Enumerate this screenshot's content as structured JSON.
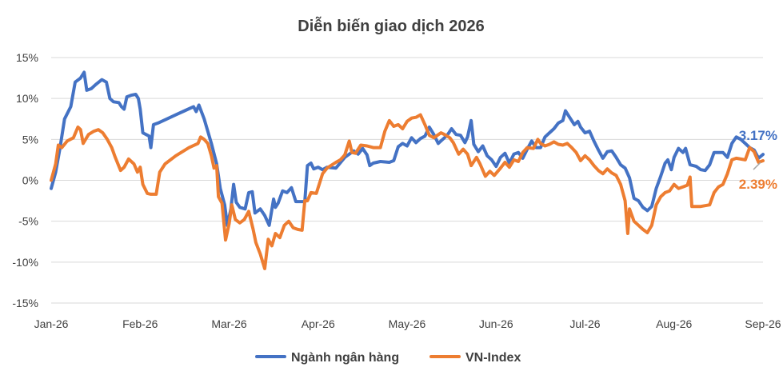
{
  "chart_data": {
    "type": "line",
    "title": "Diễn biến giao dịch 2026",
    "xlabel": "",
    "ylabel": "",
    "x_ticks": [
      "Jan-26",
      "Feb-26",
      "Mar-26",
      "Apr-26",
      "May-26",
      "Jun-26",
      "Jul-26",
      "Aug-26",
      "Sep-26"
    ],
    "y_ticks": [
      "15%",
      "10%",
      "5%",
      "0%",
      "-5%",
      "-10%",
      "-15%"
    ],
    "ylim": [
      -15,
      15
    ],
    "xlim": [
      0,
      8
    ],
    "grid": true,
    "legend_position": "bottom",
    "end_labels": [
      "3.17%",
      "2.39%"
    ],
    "series": [
      {
        "name": "Ngành ngân hàng",
        "color": "#4472c4",
        "points": [
          [
            0,
            -1
          ],
          [
            0.05,
            1
          ],
          [
            0.1,
            4
          ],
          [
            0.15,
            7.5
          ],
          [
            0.22,
            9
          ],
          [
            0.27,
            12
          ],
          [
            0.33,
            12.5
          ],
          [
            0.37,
            13.2
          ],
          [
            0.4,
            11
          ],
          [
            0.45,
            11.2
          ],
          [
            0.5,
            11.7
          ],
          [
            0.57,
            12.3
          ],
          [
            0.62,
            12
          ],
          [
            0.66,
            10
          ],
          [
            0.7,
            9.6
          ],
          [
            0.76,
            9.5
          ],
          [
            0.79,
            9
          ],
          [
            0.82,
            8.7
          ],
          [
            0.85,
            10.2
          ],
          [
            0.9,
            10.4
          ],
          [
            0.95,
            10.5
          ],
          [
            0.98,
            10
          ],
          [
            1.0,
            8.7
          ],
          [
            1.03,
            5.8
          ],
          [
            1.1,
            5.4
          ],
          [
            1.12,
            4
          ],
          [
            1.15,
            6.8
          ],
          [
            1.2,
            7
          ],
          [
            1.3,
            7.5
          ],
          [
            1.4,
            8
          ],
          [
            1.5,
            8.5
          ],
          [
            1.6,
            9
          ],
          [
            1.63,
            8.4
          ],
          [
            1.66,
            9.2
          ],
          [
            1.72,
            7.5
          ],
          [
            1.8,
            4.5
          ],
          [
            1.86,
            2
          ],
          [
            1.9,
            -1
          ],
          [
            1.95,
            -3
          ],
          [
            1.98,
            -5.5
          ],
          [
            2.02,
            -3.5
          ],
          [
            2.05,
            -0.5
          ],
          [
            2.08,
            -2.7
          ],
          [
            2.12,
            -3.3
          ],
          [
            2.18,
            -3.5
          ],
          [
            2.22,
            -1.5
          ],
          [
            2.26,
            -1.4
          ],
          [
            2.29,
            -4
          ],
          [
            2.35,
            -3.5
          ],
          [
            2.4,
            -4.3
          ],
          [
            2.45,
            -5.5
          ],
          [
            2.5,
            -2.3
          ],
          [
            2.52,
            -3.3
          ],
          [
            2.55,
            -2.8
          ],
          [
            2.6,
            -1.3
          ],
          [
            2.65,
            -1.5
          ],
          [
            2.7,
            -0.9
          ],
          [
            2.75,
            -2.6
          ],
          [
            2.8,
            -2.6
          ],
          [
            2.85,
            -2.6
          ],
          [
            2.88,
            1.8
          ],
          [
            2.92,
            2.1
          ],
          [
            2.95,
            1.4
          ],
          [
            3.0,
            1.6
          ],
          [
            3.05,
            1.3
          ],
          [
            3.1,
            1.6
          ],
          [
            3.2,
            1.5
          ],
          [
            3.3,
            2.8
          ],
          [
            3.4,
            3.6
          ],
          [
            3.45,
            3.2
          ],
          [
            3.5,
            3.9
          ],
          [
            3.55,
            3.1
          ],
          [
            3.58,
            1.8
          ],
          [
            3.62,
            2.1
          ],
          [
            3.7,
            2.3
          ],
          [
            3.8,
            2.2
          ],
          [
            3.85,
            2.4
          ],
          [
            3.9,
            4.1
          ],
          [
            3.95,
            4.5
          ],
          [
            4.0,
            4.2
          ],
          [
            4.05,
            5.2
          ],
          [
            4.1,
            4.6
          ],
          [
            4.15,
            5.1
          ],
          [
            4.2,
            5.4
          ],
          [
            4.25,
            6.5
          ],
          [
            4.3,
            5.6
          ],
          [
            4.35,
            4.5
          ],
          [
            4.4,
            5
          ],
          [
            4.45,
            5.5
          ],
          [
            4.5,
            6.3
          ],
          [
            4.55,
            5.6
          ],
          [
            4.6,
            5.5
          ],
          [
            4.65,
            4.6
          ],
          [
            4.68,
            5.3
          ],
          [
            4.72,
            7.3
          ],
          [
            4.75,
            4.4
          ],
          [
            4.8,
            3.5
          ],
          [
            4.85,
            4.2
          ],
          [
            4.9,
            3
          ],
          [
            4.95,
            2.5
          ],
          [
            5.0,
            1.7
          ],
          [
            5.05,
            2.8
          ],
          [
            5.1,
            3.3
          ],
          [
            5.15,
            2.1
          ],
          [
            5.2,
            3.2
          ],
          [
            5.25,
            3.4
          ],
          [
            5.3,
            2.7
          ],
          [
            5.35,
            3.8
          ],
          [
            5.4,
            4.8
          ],
          [
            5.45,
            4
          ],
          [
            5.5,
            4
          ],
          [
            5.55,
            5.3
          ],
          [
            5.6,
            5.8
          ],
          [
            5.65,
            6.3
          ],
          [
            5.7,
            7
          ],
          [
            5.75,
            7.3
          ],
          [
            5.78,
            8.5
          ],
          [
            5.82,
            7.8
          ],
          [
            5.88,
            6.8
          ],
          [
            5.92,
            7.2
          ],
          [
            5.95,
            6.5
          ],
          [
            6.0,
            5.8
          ],
          [
            6.05,
            6
          ],
          [
            6.1,
            4.8
          ],
          [
            6.15,
            3.7
          ],
          [
            6.2,
            2.7
          ],
          [
            6.25,
            3.5
          ],
          [
            6.3,
            3.6
          ],
          [
            6.35,
            2.8
          ],
          [
            6.4,
            1.9
          ],
          [
            6.45,
            1.5
          ],
          [
            6.5,
            0.3
          ],
          [
            6.55,
            -2.2
          ],
          [
            6.6,
            -2.5
          ],
          [
            6.65,
            -3.3
          ],
          [
            6.7,
            -3.7
          ],
          [
            6.75,
            -3.2
          ],
          [
            6.8,
            -1
          ],
          [
            6.85,
            0.5
          ],
          [
            6.9,
            2.1
          ],
          [
            6.93,
            2.5
          ],
          [
            6.97,
            1.3
          ],
          [
            7.0,
            2.8
          ],
          [
            7.05,
            3.9
          ],
          [
            7.1,
            3.4
          ],
          [
            7.13,
            3.9
          ],
          [
            7.18,
            1.9
          ],
          [
            7.25,
            1.7
          ],
          [
            7.3,
            1.3
          ],
          [
            7.35,
            1.2
          ],
          [
            7.4,
            1.9
          ],
          [
            7.45,
            3.4
          ],
          [
            7.55,
            3.4
          ],
          [
            7.6,
            2.8
          ],
          [
            7.65,
            4.5
          ],
          [
            7.7,
            5.3
          ],
          [
            7.75,
            5
          ],
          [
            7.8,
            4.5
          ],
          [
            7.85,
            4
          ],
          [
            7.9,
            3.7
          ],
          [
            7.95,
            2.7
          ],
          [
            8.0,
            3.17
          ]
        ]
      },
      {
        "name": "VN-Index",
        "color": "#ed7d31",
        "points": [
          [
            0,
            0
          ],
          [
            0.05,
            2
          ],
          [
            0.08,
            4.3
          ],
          [
            0.12,
            4
          ],
          [
            0.18,
            4.8
          ],
          [
            0.25,
            5.2
          ],
          [
            0.3,
            6.5
          ],
          [
            0.33,
            6.2
          ],
          [
            0.36,
            4.5
          ],
          [
            0.42,
            5.6
          ],
          [
            0.48,
            6
          ],
          [
            0.53,
            6.2
          ],
          [
            0.58,
            5.8
          ],
          [
            0.63,
            5
          ],
          [
            0.68,
            4
          ],
          [
            0.72,
            2.8
          ],
          [
            0.78,
            1.2
          ],
          [
            0.82,
            1.6
          ],
          [
            0.87,
            2.6
          ],
          [
            0.93,
            2
          ],
          [
            0.97,
            1
          ],
          [
            1.0,
            1.6
          ],
          [
            1.03,
            -0.5
          ],
          [
            1.08,
            -1.6
          ],
          [
            1.12,
            -1.7
          ],
          [
            1.18,
            -1.7
          ],
          [
            1.22,
            1
          ],
          [
            1.28,
            2
          ],
          [
            1.4,
            3
          ],
          [
            1.55,
            4
          ],
          [
            1.65,
            4.5
          ],
          [
            1.68,
            5.3
          ],
          [
            1.72,
            5
          ],
          [
            1.76,
            4.5
          ],
          [
            1.8,
            3
          ],
          [
            1.83,
            1.5
          ],
          [
            1.86,
            1.8
          ],
          [
            1.88,
            -2
          ],
          [
            1.92,
            -2.8
          ],
          [
            1.96,
            -7.3
          ],
          [
            2.0,
            -5.3
          ],
          [
            2.03,
            -3
          ],
          [
            2.07,
            -4.8
          ],
          [
            2.12,
            -5.2
          ],
          [
            2.17,
            -4.8
          ],
          [
            2.22,
            -3.8
          ],
          [
            2.27,
            -6
          ],
          [
            2.3,
            -7.6
          ],
          [
            2.35,
            -9
          ],
          [
            2.4,
            -10.8
          ],
          [
            2.44,
            -7.2
          ],
          [
            2.48,
            -8
          ],
          [
            2.52,
            -6.5
          ],
          [
            2.57,
            -7
          ],
          [
            2.62,
            -5.5
          ],
          [
            2.67,
            -5
          ],
          [
            2.72,
            -5.8
          ],
          [
            2.77,
            -6
          ],
          [
            2.82,
            -6.1
          ],
          [
            2.85,
            -2.5
          ],
          [
            2.88,
            -2.5
          ],
          [
            2.92,
            -1.5
          ],
          [
            2.98,
            -1.6
          ],
          [
            3.05,
            0.8
          ],
          [
            3.1,
            1.5
          ],
          [
            3.2,
            2.2
          ],
          [
            3.25,
            2.5
          ],
          [
            3.3,
            3.1
          ],
          [
            3.35,
            4.8
          ],
          [
            3.38,
            3.4
          ],
          [
            3.42,
            3.3
          ],
          [
            3.48,
            4.3
          ],
          [
            3.55,
            4.2
          ],
          [
            3.62,
            4
          ],
          [
            3.7,
            4
          ],
          [
            3.75,
            6
          ],
          [
            3.8,
            7.3
          ],
          [
            3.85,
            6.6
          ],
          [
            3.9,
            6.8
          ],
          [
            3.95,
            6.3
          ],
          [
            4.0,
            7.2
          ],
          [
            4.05,
            7.6
          ],
          [
            4.1,
            7.7
          ],
          [
            4.15,
            8
          ],
          [
            4.2,
            6.8
          ],
          [
            4.25,
            5.5
          ],
          [
            4.3,
            5.2
          ],
          [
            4.38,
            5.8
          ],
          [
            4.42,
            5.6
          ],
          [
            4.48,
            5.2
          ],
          [
            4.52,
            4.6
          ],
          [
            4.58,
            3.2
          ],
          [
            4.63,
            3.8
          ],
          [
            4.68,
            3.2
          ],
          [
            4.72,
            1.8
          ],
          [
            4.78,
            2.8
          ],
          [
            4.82,
            2
          ],
          [
            4.88,
            0.5
          ],
          [
            4.93,
            1.1
          ],
          [
            4.98,
            0.6
          ],
          [
            5.05,
            1.5
          ],
          [
            5.1,
            2.2
          ],
          [
            5.15,
            1.6
          ],
          [
            5.2,
            2.5
          ],
          [
            5.25,
            2.3
          ],
          [
            5.3,
            3.4
          ],
          [
            5.35,
            4
          ],
          [
            5.42,
            3.9
          ],
          [
            5.47,
            5
          ],
          [
            5.5,
            4.5
          ],
          [
            5.55,
            4.2
          ],
          [
            5.6,
            4.4
          ],
          [
            5.65,
            4.7
          ],
          [
            5.7,
            4.4
          ],
          [
            5.75,
            4.3
          ],
          [
            5.8,
            4.5
          ],
          [
            5.85,
            4
          ],
          [
            5.9,
            3.4
          ],
          [
            5.95,
            2.4
          ],
          [
            6.0,
            3
          ],
          [
            6.05,
            2.5
          ],
          [
            6.1,
            1.8
          ],
          [
            6.15,
            1.2
          ],
          [
            6.2,
            0.8
          ],
          [
            6.25,
            1.4
          ],
          [
            6.3,
            0.9
          ],
          [
            6.35,
            0.6
          ],
          [
            6.4,
            -0.5
          ],
          [
            6.45,
            -2.5
          ],
          [
            6.48,
            -6.5
          ],
          [
            6.5,
            -3.5
          ],
          [
            6.55,
            -5
          ],
          [
            6.6,
            -5.5
          ],
          [
            6.65,
            -6
          ],
          [
            6.7,
            -6.4
          ],
          [
            6.75,
            -5.5
          ],
          [
            6.8,
            -3
          ],
          [
            6.85,
            -2
          ],
          [
            6.9,
            -1.5
          ],
          [
            6.95,
            -1.3
          ],
          [
            7.0,
            -0.5
          ],
          [
            7.05,
            -1
          ],
          [
            7.1,
            -0.8
          ],
          [
            7.15,
            -0.6
          ],
          [
            7.18,
            0.4
          ],
          [
            7.2,
            -3.2
          ],
          [
            7.25,
            -3.2
          ],
          [
            7.3,
            -3.2
          ],
          [
            7.35,
            -3.1
          ],
          [
            7.4,
            -3
          ],
          [
            7.45,
            -1.5
          ],
          [
            7.5,
            -0.8
          ],
          [
            7.55,
            -0.5
          ],
          [
            7.6,
            0.8
          ],
          [
            7.65,
            2.5
          ],
          [
            7.7,
            2.7
          ],
          [
            7.75,
            2.6
          ],
          [
            7.8,
            2.5
          ],
          [
            7.85,
            4
          ],
          [
            7.9,
            3.5
          ],
          [
            7.95,
            2.2
          ],
          [
            8.0,
            2.39
          ]
        ]
      }
    ]
  }
}
